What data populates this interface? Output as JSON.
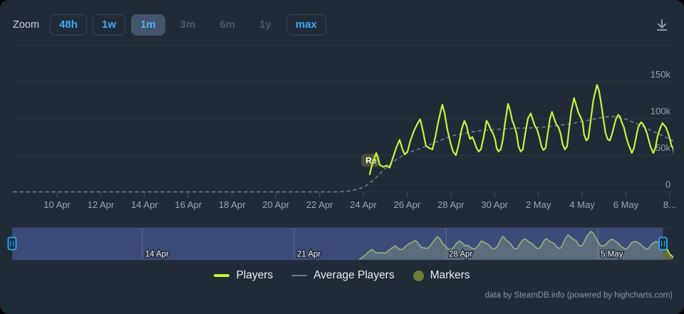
{
  "toolbar": {
    "zoom_label": "Zoom",
    "buttons": [
      {
        "label": "48h",
        "state": "normal"
      },
      {
        "label": "1w",
        "state": "normal"
      },
      {
        "label": "1m",
        "state": "selected"
      },
      {
        "label": "3m",
        "state": "disabled"
      },
      {
        "label": "6m",
        "state": "disabled"
      },
      {
        "label": "1y",
        "state": "disabled"
      },
      {
        "label": "max",
        "state": "normal"
      }
    ],
    "download_icon": "download-icon"
  },
  "chart_data": {
    "type": "line",
    "title": "",
    "x_axis": {
      "unit": "date",
      "day0": "8 Apr",
      "range_days": [
        0,
        30.2
      ],
      "ticks": [
        {
          "day": 2,
          "label": "10 Apr"
        },
        {
          "day": 4,
          "label": "12 Apr"
        },
        {
          "day": 6,
          "label": "14 Apr"
        },
        {
          "day": 8,
          "label": "16 Apr"
        },
        {
          "day": 10,
          "label": "18 Apr"
        },
        {
          "day": 12,
          "label": "20 Apr"
        },
        {
          "day": 14,
          "label": "22 Apr"
        },
        {
          "day": 16,
          "label": "24 Apr"
        },
        {
          "day": 18,
          "label": "26 Apr"
        },
        {
          "day": 20,
          "label": "28 Apr"
        },
        {
          "day": 22,
          "label": "30 Apr"
        },
        {
          "day": 24,
          "label": "2 May"
        },
        {
          "day": 26,
          "label": "4 May"
        },
        {
          "day": 28,
          "label": "6 May"
        },
        {
          "day": 30,
          "label": "8..."
        }
      ]
    },
    "y_axis": {
      "max": 200000,
      "ticks": [
        {
          "value": 0,
          "label": "0"
        },
        {
          "value": 50000,
          "label": "50k"
        },
        {
          "value": 100000,
          "label": "100k"
        },
        {
          "value": 150000,
          "label": "150k"
        }
      ]
    },
    "series": [
      {
        "name": "Players",
        "color": "#c3f53a",
        "dash": "solid",
        "points": [
          [
            16.29,
            24000
          ],
          [
            16.42,
            40000
          ],
          [
            16.59,
            53000
          ],
          [
            16.75,
            37000
          ],
          [
            16.91,
            34000
          ],
          [
            17.07,
            36000
          ],
          [
            17.2,
            33000
          ],
          [
            17.37,
            48000
          ],
          [
            17.5,
            60000
          ],
          [
            17.66,
            71000
          ],
          [
            17.79,
            58000
          ],
          [
            17.89,
            51000
          ],
          [
            18.02,
            55000
          ],
          [
            18.15,
            70000
          ],
          [
            18.31,
            83000
          ],
          [
            18.47,
            93000
          ],
          [
            18.6,
            99000
          ],
          [
            18.73,
            82000
          ],
          [
            18.86,
            63000
          ],
          [
            18.99,
            60000
          ],
          [
            19.16,
            58000
          ],
          [
            19.29,
            75000
          ],
          [
            19.42,
            95000
          ],
          [
            19.55,
            112000
          ],
          [
            19.61,
            119000
          ],
          [
            19.71,
            108000
          ],
          [
            19.84,
            85000
          ],
          [
            19.97,
            68000
          ],
          [
            20.1,
            55000
          ],
          [
            20.23,
            50000
          ],
          [
            20.36,
            65000
          ],
          [
            20.49,
            85000
          ],
          [
            20.62,
            97000
          ],
          [
            20.72,
            90000
          ],
          [
            20.81,
            78000
          ],
          [
            20.88,
            72000
          ],
          [
            20.98,
            75000
          ],
          [
            21.08,
            68000
          ],
          [
            21.17,
            60000
          ],
          [
            21.27,
            55000
          ],
          [
            21.37,
            58000
          ],
          [
            21.5,
            75000
          ],
          [
            21.63,
            97000
          ],
          [
            21.73,
            92000
          ],
          [
            21.82,
            85000
          ],
          [
            21.92,
            80000
          ],
          [
            22.02,
            72000
          ],
          [
            22.09,
            60000
          ],
          [
            22.18,
            55000
          ],
          [
            22.28,
            58000
          ],
          [
            22.38,
            72000
          ],
          [
            22.48,
            95000
          ],
          [
            22.61,
            120000
          ],
          [
            22.7,
            112000
          ],
          [
            22.8,
            98000
          ],
          [
            22.9,
            90000
          ],
          [
            23.0,
            80000
          ],
          [
            23.09,
            62000
          ],
          [
            23.19,
            55000
          ],
          [
            23.29,
            58000
          ],
          [
            23.39,
            78000
          ],
          [
            23.52,
            100000
          ],
          [
            23.65,
            107000
          ],
          [
            23.75,
            98000
          ],
          [
            23.84,
            90000
          ],
          [
            23.94,
            85000
          ],
          [
            24.04,
            75000
          ],
          [
            24.14,
            62000
          ],
          [
            24.23,
            57000
          ],
          [
            24.33,
            60000
          ],
          [
            24.43,
            80000
          ],
          [
            24.53,
            100000
          ],
          [
            24.62,
            109000
          ],
          [
            24.72,
            100000
          ],
          [
            24.82,
            92000
          ],
          [
            24.92,
            88000
          ],
          [
            25.01,
            80000
          ],
          [
            25.11,
            65000
          ],
          [
            25.21,
            58000
          ],
          [
            25.31,
            62000
          ],
          [
            25.4,
            85000
          ],
          [
            25.5,
            110000
          ],
          [
            25.63,
            128000
          ],
          [
            25.73,
            118000
          ],
          [
            25.83,
            108000
          ],
          [
            25.93,
            102000
          ],
          [
            26.02,
            95000
          ],
          [
            26.09,
            78000
          ],
          [
            26.19,
            70000
          ],
          [
            26.28,
            73000
          ],
          [
            26.38,
            95000
          ],
          [
            26.51,
            125000
          ],
          [
            26.68,
            146000
          ],
          [
            26.77,
            138000
          ],
          [
            26.87,
            120000
          ],
          [
            26.97,
            100000
          ],
          [
            27.07,
            80000
          ],
          [
            27.16,
            72000
          ],
          [
            27.26,
            70000
          ],
          [
            27.36,
            78000
          ],
          [
            27.46,
            90000
          ],
          [
            27.55,
            100000
          ],
          [
            27.65,
            105000
          ],
          [
            27.72,
            103000
          ],
          [
            27.81,
            95000
          ],
          [
            27.91,
            88000
          ],
          [
            28.01,
            75000
          ],
          [
            28.11,
            65000
          ],
          [
            28.21,
            58000
          ],
          [
            28.27,
            53000
          ],
          [
            28.37,
            60000
          ],
          [
            28.47,
            75000
          ],
          [
            28.56,
            88000
          ],
          [
            28.69,
            95000
          ],
          [
            28.79,
            92000
          ],
          [
            28.86,
            88000
          ],
          [
            28.96,
            80000
          ],
          [
            29.05,
            70000
          ],
          [
            29.12,
            62000
          ],
          [
            29.18,
            58000
          ],
          [
            29.25,
            53000
          ],
          [
            29.35,
            60000
          ],
          [
            29.44,
            75000
          ],
          [
            29.54,
            85000
          ],
          [
            29.67,
            94000
          ],
          [
            29.77,
            90000
          ],
          [
            29.83,
            88000
          ],
          [
            29.93,
            80000
          ],
          [
            30.03,
            70000
          ],
          [
            30.09,
            62000
          ],
          [
            30.16,
            60000
          ],
          [
            30.3,
            30000
          ],
          [
            30.45,
            14000
          ],
          [
            30.6,
            24000
          ]
        ]
      },
      {
        "name": "Average Players",
        "color": "#79838d",
        "dash": "dashed",
        "points": [
          [
            0,
            0
          ],
          [
            14.8,
            0
          ],
          [
            15.3,
            1000
          ],
          [
            15.8,
            4000
          ],
          [
            16.1,
            8000
          ],
          [
            16.5,
            17000
          ],
          [
            17,
            32000
          ],
          [
            17.5,
            44000
          ],
          [
            18,
            53000
          ],
          [
            18.5,
            58000
          ],
          [
            19,
            64000
          ],
          [
            19.5,
            70000
          ],
          [
            20,
            76000
          ],
          [
            20.5,
            79000
          ],
          [
            21,
            82000
          ],
          [
            21.5,
            84000
          ],
          [
            22,
            85000
          ],
          [
            22.5,
            86000
          ],
          [
            23,
            87000
          ],
          [
            23.5,
            87000
          ],
          [
            24,
            88000
          ],
          [
            24.5,
            89000
          ],
          [
            25,
            91000
          ],
          [
            25.5,
            93000
          ],
          [
            26,
            96000
          ],
          [
            26.5,
            99000
          ],
          [
            27,
            102000
          ],
          [
            27.4,
            103000
          ],
          [
            28,
            99000
          ],
          [
            28.5,
            93000
          ],
          [
            29,
            86000
          ],
          [
            29.5,
            79000
          ],
          [
            30,
            72000
          ],
          [
            30.2,
            69000
          ]
        ]
      }
    ],
    "markers": [
      {
        "label": "Re",
        "day": 16.3,
        "value": 43000
      }
    ],
    "navigator": {
      "lead_in_day": 16.0,
      "selected_range": [
        0,
        30
      ],
      "ticks": [
        {
          "day": 6,
          "label": "14 Apr"
        },
        {
          "day": 13,
          "label": "21 Apr"
        },
        {
          "day": 20,
          "label": "28 Apr"
        },
        {
          "day": 27,
          "label": "5 May"
        }
      ]
    }
  },
  "legend": {
    "items": [
      {
        "label": "Players",
        "swatch": "line",
        "color": "#c3f53a"
      },
      {
        "label": "Average Players",
        "swatch": "line",
        "color": "#6e7882"
      },
      {
        "label": "Markers",
        "swatch": "circle",
        "color": "#6d7c34"
      }
    ]
  },
  "credits": "data by SteamDB.info (powered by highcharts.com)",
  "colors": {
    "background": "#212b38",
    "grid": "#2b3645",
    "tick": "#47525f",
    "axis_label": "#95a1ad",
    "players_line": "#c3f53a",
    "average_line": "#79838d",
    "button_blue": "#3fa7f5",
    "button_selected_bg": "#44546a",
    "button_disabled_text": "#4d5866",
    "navigator_mask": "rgba(90,110,195,0.48)",
    "navigator_fill": "rgba(168,188,70,0.45)",
    "navigator_gridline": "rgba(226,233,242,0.22)",
    "handle_border": "#2d9fe2",
    "handle_fill": "#0f2c40",
    "marker_badge": "#4b5733",
    "credits_text": "#8b96a2"
  }
}
